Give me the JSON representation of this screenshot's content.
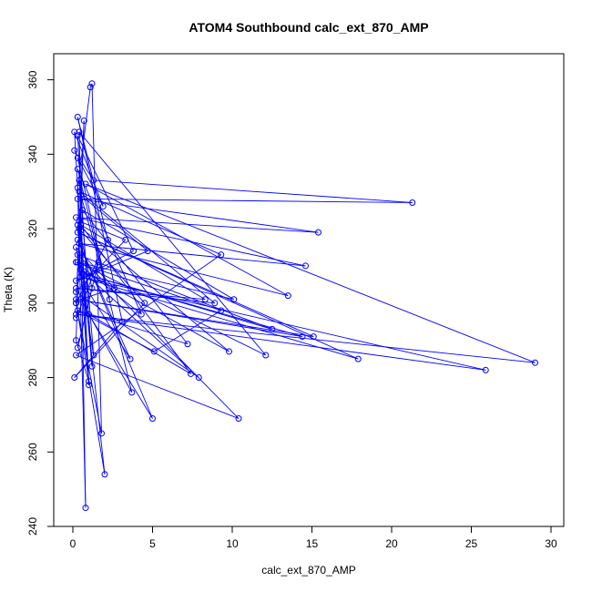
{
  "chart_data": {
    "type": "scatter",
    "title": "ATOM4 Southbound calc_ext_870_AMP",
    "xlabel": "calc_ext_870_AMP",
    "ylabel": "Theta (K)",
    "xlim": [
      -1.2,
      30.8
    ],
    "ylim": [
      240,
      367
    ],
    "xticks": [
      0,
      5,
      10,
      15,
      20,
      25,
      30
    ],
    "yticks": [
      240,
      260,
      280,
      300,
      320,
      340,
      360
    ],
    "grid": false,
    "series": [
      {
        "color": "#0000ff",
        "connected": true,
        "marker": "open-circle",
        "points": [
          [
            0.1,
            341
          ],
          [
            1.3,
            333
          ],
          [
            21.3,
            327
          ],
          [
            0.3,
            328
          ],
          [
            15.4,
            319
          ],
          [
            0.2,
            323
          ],
          [
            14.6,
            310
          ],
          [
            0.4,
            316
          ],
          [
            13.5,
            302
          ],
          [
            0.8,
            332
          ],
          [
            29.0,
            284
          ],
          [
            0.2,
            297
          ],
          [
            25.9,
            282
          ],
          [
            0.5,
            307
          ],
          [
            17.9,
            285
          ],
          [
            0.3,
            319
          ],
          [
            15.1,
            291
          ],
          [
            0.2,
            301
          ],
          [
            14.4,
            291
          ],
          [
            0.6,
            308
          ],
          [
            12.5,
            293
          ],
          [
            0.3,
            313
          ],
          [
            10.4,
            269
          ],
          [
            0.2,
            286
          ],
          [
            9.3,
            313
          ],
          [
            0.4,
            330
          ],
          [
            8.9,
            300
          ],
          [
            0.2,
            304
          ],
          [
            8.3,
            301
          ],
          [
            0.5,
            321
          ],
          [
            7.4,
            281
          ],
          [
            1.0,
            297
          ],
          [
            5.0,
            269
          ],
          [
            0.3,
            317
          ],
          [
            3.6,
            285
          ],
          [
            0.7,
            305
          ],
          [
            2.0,
            254
          ],
          [
            0.2,
            300
          ],
          [
            1.8,
            265
          ],
          [
            1.2,
            359
          ],
          [
            1.1,
            358
          ],
          [
            0.3,
            331
          ],
          [
            0.8,
            245
          ],
          [
            0.4,
            346
          ],
          [
            12.1,
            286
          ],
          [
            0.3,
            311
          ],
          [
            10.1,
            301
          ],
          [
            0.6,
            325
          ],
          [
            7.2,
            289
          ],
          [
            0.3,
            298
          ],
          [
            5.1,
            287
          ],
          [
            9.3,
            298
          ],
          [
            0.2,
            311
          ],
          [
            4.3,
            297
          ],
          [
            0.3,
            336
          ],
          [
            3.7,
            276
          ],
          [
            0.5,
            301
          ],
          [
            2.6,
            304
          ],
          [
            0.2,
            315
          ],
          [
            1.3,
            286
          ],
          [
            0.4,
            333
          ],
          [
            1.0,
            278
          ],
          [
            0.3,
            321
          ],
          [
            9.8,
            287
          ],
          [
            0.5,
            309
          ],
          [
            7.9,
            280
          ],
          [
            0.2,
            303
          ],
          [
            3.3,
            317
          ],
          [
            0.4,
            322
          ],
          [
            1.2,
            283
          ],
          [
            0.3,
            345
          ],
          [
            3.8,
            314
          ],
          [
            0.2,
            306
          ],
          [
            4.7,
            314
          ],
          [
            0.5,
            329
          ],
          [
            2.3,
            301
          ],
          [
            0.3,
            339
          ],
          [
            1.9,
            326
          ],
          [
            0.1,
            346
          ],
          [
            1.0,
            279
          ],
          [
            0.2,
            290
          ],
          [
            0.7,
            349
          ],
          [
            0.2,
            300
          ],
          [
            2.2,
            317
          ],
          [
            0.3,
            350
          ],
          [
            3.1,
            295
          ],
          [
            0.1,
            280
          ],
          [
            4.5,
            300
          ],
          [
            0.4,
            320
          ],
          [
            1.2,
            304
          ],
          [
            0.3,
            288
          ],
          [
            1.6,
            311
          ],
          [
            0.2,
            296
          ]
        ]
      }
    ]
  }
}
